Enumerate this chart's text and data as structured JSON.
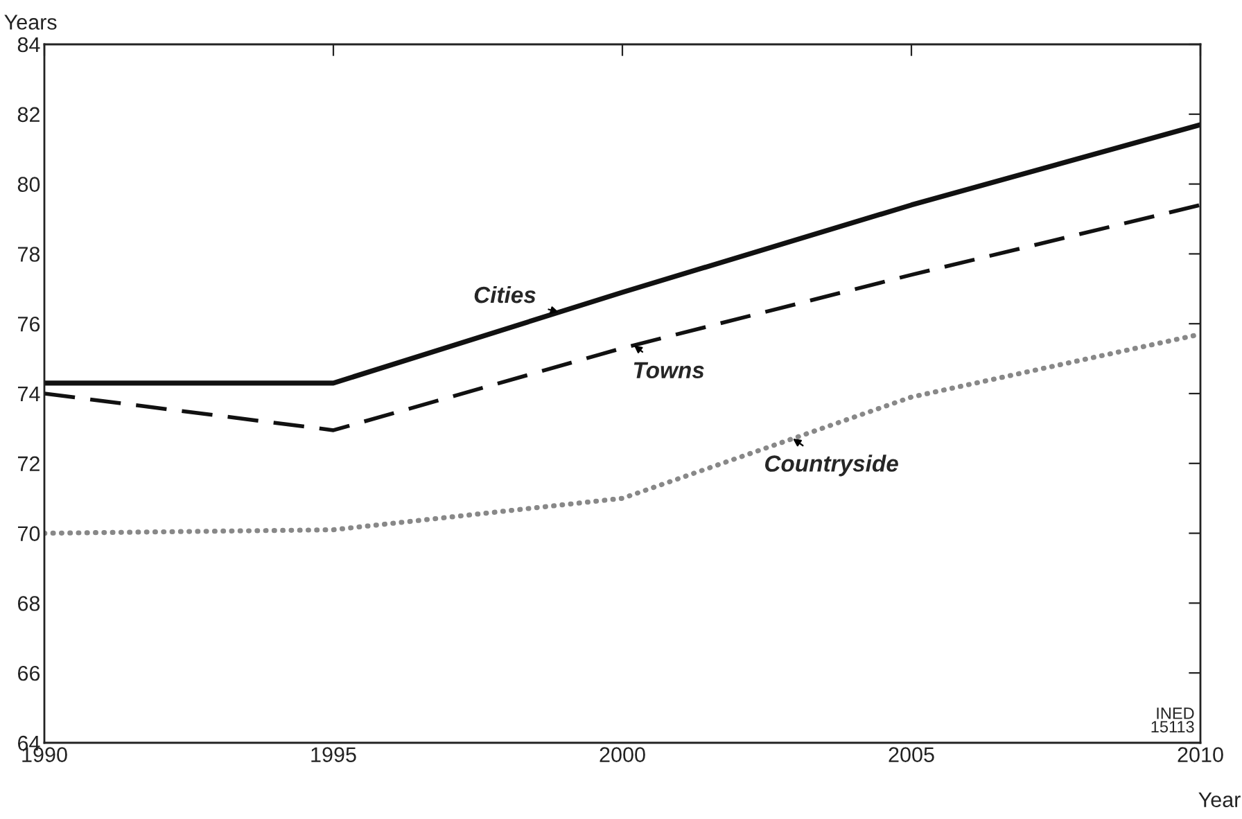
{
  "chart_data": {
    "type": "line",
    "ylabel": "Years",
    "xlabel": "Year",
    "x": [
      1990,
      1995,
      2000,
      2005,
      2010
    ],
    "series": [
      {
        "name": "Cities",
        "color": "#111111",
        "line_style": "solid",
        "values": [
          74.3,
          74.3,
          76.9,
          79.4,
          81.7
        ]
      },
      {
        "name": "Towns",
        "color": "#111111",
        "line_style": "dashed",
        "values": [
          74.0,
          72.95,
          75.3,
          77.4,
          79.4
        ]
      },
      {
        "name": "Countryside",
        "color": "#888888",
        "line_style": "dotted",
        "values": [
          70.0,
          70.1,
          71.0,
          73.9,
          75.7
        ]
      }
    ],
    "xlim": [
      1990,
      2010
    ],
    "xticks": [
      1990,
      1995,
      2000,
      2005,
      2010
    ],
    "ylim": [
      64,
      84
    ],
    "yticks": [
      64,
      66,
      68,
      70,
      72,
      74,
      76,
      78,
      80,
      82,
      84
    ],
    "grid": false,
    "legend": false,
    "marker": "none",
    "annotations": [
      "INED\n15113"
    ]
  }
}
